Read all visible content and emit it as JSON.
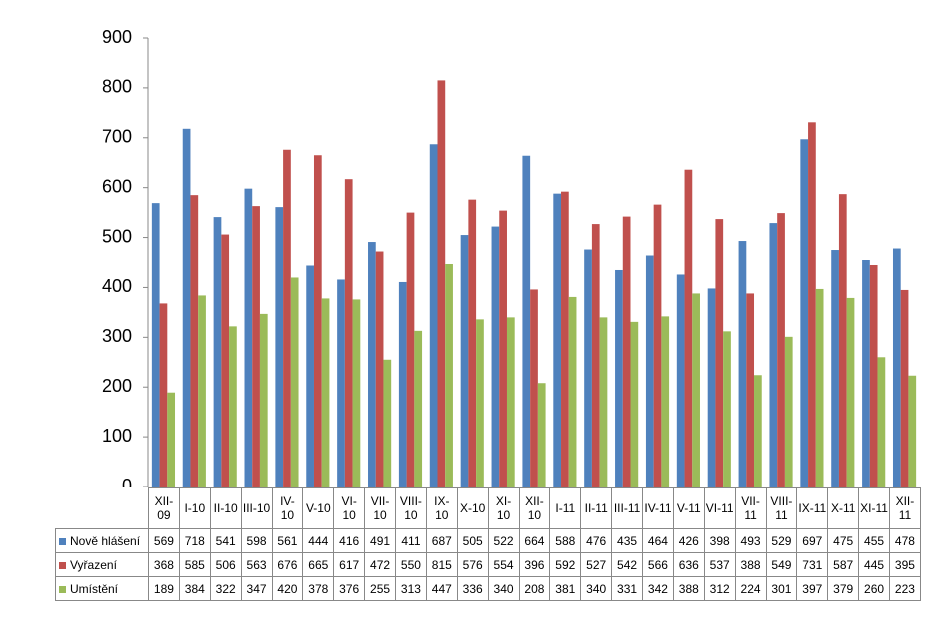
{
  "chart_data": {
    "type": "bar",
    "categories": [
      "XII-09",
      "I-10",
      "II-10",
      "III-10",
      "IV-10",
      "V-10",
      "VI-10",
      "VII-10",
      "VIII-10",
      "IX-10",
      "X-10",
      "XI-10",
      "XII-10",
      "I-11",
      "II-11",
      "III-11",
      "IV-11",
      "V-11",
      "VI-11",
      "VII-11",
      "VIII-11",
      "IX-11",
      "X-11",
      "XI-11",
      "XII-11"
    ],
    "series": [
      {
        "name": "Nově hlášení",
        "color": "#4f81bd",
        "values": [
          569,
          718,
          541,
          598,
          561,
          444,
          416,
          491,
          411,
          687,
          505,
          522,
          664,
          588,
          476,
          435,
          464,
          426,
          398,
          493,
          529,
          697,
          475,
          455,
          478
        ]
      },
      {
        "name": "Vyřazení",
        "color": "#c0504d",
        "values": [
          368,
          585,
          506,
          563,
          676,
          665,
          617,
          472,
          550,
          815,
          576,
          554,
          396,
          592,
          527,
          542,
          566,
          636,
          537,
          388,
          549,
          731,
          587,
          445,
          395
        ]
      },
      {
        "name": "Umístění",
        "color": "#9bbb59",
        "values": [
          189,
          384,
          322,
          347,
          420,
          378,
          376,
          255,
          313,
          447,
          336,
          340,
          208,
          381,
          340,
          331,
          342,
          388,
          312,
          224,
          301,
          397,
          379,
          260,
          223
        ]
      }
    ],
    "ylim": [
      0,
      900
    ],
    "yticks": [
      0,
      100,
      200,
      300,
      400,
      500,
      600,
      700,
      800,
      900
    ],
    "grid": false
  }
}
